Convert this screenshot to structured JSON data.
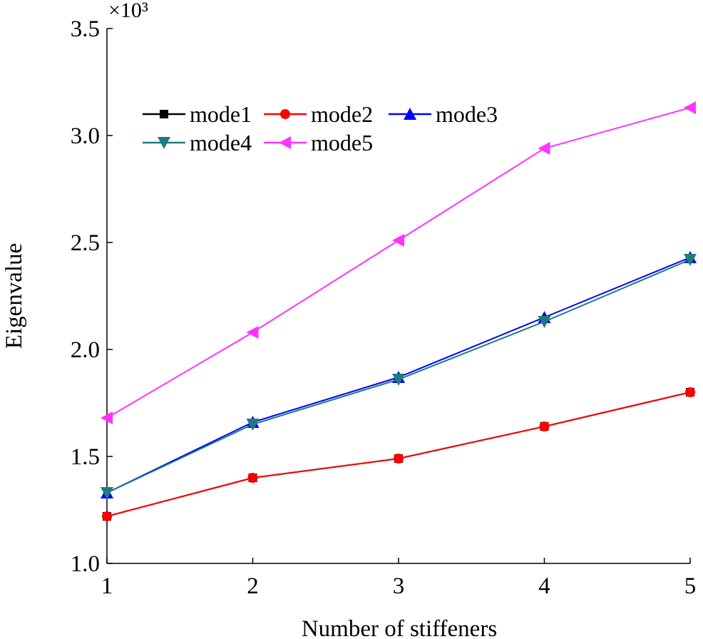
{
  "chart_data": {
    "type": "line",
    "title": "",
    "xlabel": "Number of stiffeners",
    "ylabel": "Eigenvalue",
    "y_multiplier_label": "×10³",
    "x": [
      1,
      2,
      3,
      4,
      5
    ],
    "xlim": [
      1,
      5
    ],
    "ylim": [
      1.0,
      3.5
    ],
    "x_ticks": [
      1,
      2,
      3,
      4,
      5
    ],
    "x_tick_labels": [
      "1",
      "2",
      "3",
      "4",
      "5"
    ],
    "y_ticks": [
      1.0,
      1.5,
      2.0,
      2.5,
      3.0,
      3.5
    ],
    "y_tick_labels": [
      "1.0",
      "1.5",
      "2.0",
      "2.5",
      "3.0",
      "3.5"
    ],
    "grid": false,
    "legend_position": "top-left",
    "series": [
      {
        "name": "mode1",
        "color": "#000000",
        "marker": "square",
        "values": [
          1.22,
          1.4,
          1.49,
          1.64,
          1.8
        ]
      },
      {
        "name": "mode2",
        "color": "#ff0000",
        "marker": "circle",
        "values": [
          1.22,
          1.4,
          1.49,
          1.64,
          1.8
        ]
      },
      {
        "name": "mode3",
        "color": "#0000ff",
        "marker": "triangle-up",
        "values": [
          1.33,
          1.66,
          1.87,
          2.15,
          2.43
        ]
      },
      {
        "name": "mode4",
        "color": "#1e7b80",
        "marker": "triangle-down",
        "values": [
          1.33,
          1.65,
          1.86,
          2.13,
          2.42
        ]
      },
      {
        "name": "mode5",
        "color": "#ff33ff",
        "marker": "triangle-left",
        "values": [
          1.68,
          2.08,
          2.51,
          2.94,
          3.13
        ]
      }
    ]
  }
}
